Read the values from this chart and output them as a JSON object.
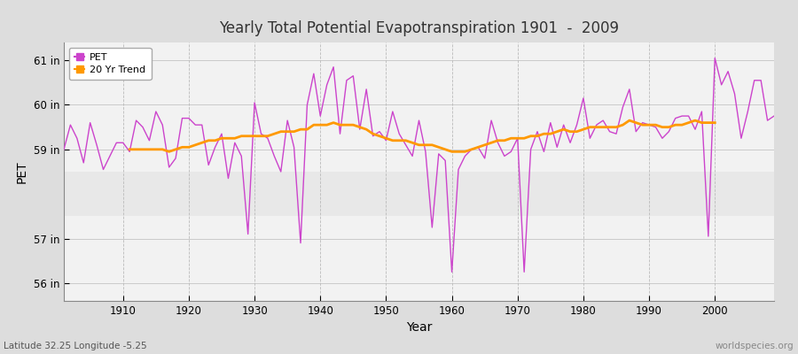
{
  "title": "Yearly Total Potential Evapotranspiration 1901  -  2009",
  "ylabel": "PET",
  "xlabel": "Year",
  "subtitle_left": "Latitude 32.25 Longitude -5.25",
  "subtitle_right": "worldspecies.org",
  "pet_color": "#cc44cc",
  "trend_color": "#ff9900",
  "bg_color": "#dddddd",
  "plot_bg": "#e8e8e8",
  "band_color": "#f2f2f2",
  "ylim": [
    55.6,
    61.4
  ],
  "yticks": [
    56,
    57,
    59,
    60,
    61
  ],
  "ytick_labels": [
    "56 in",
    "57 in",
    "59 in",
    "60 in",
    "61 in"
  ],
  "years": [
    1901,
    1902,
    1903,
    1904,
    1905,
    1906,
    1907,
    1908,
    1909,
    1910,
    1911,
    1912,
    1913,
    1914,
    1915,
    1916,
    1917,
    1918,
    1919,
    1920,
    1921,
    1922,
    1923,
    1924,
    1925,
    1926,
    1927,
    1928,
    1929,
    1930,
    1931,
    1932,
    1933,
    1934,
    1935,
    1936,
    1937,
    1938,
    1939,
    1940,
    1941,
    1942,
    1943,
    1944,
    1945,
    1946,
    1947,
    1948,
    1949,
    1950,
    1951,
    1952,
    1953,
    1954,
    1955,
    1956,
    1957,
    1958,
    1959,
    1960,
    1961,
    1962,
    1963,
    1964,
    1965,
    1966,
    1967,
    1968,
    1969,
    1970,
    1971,
    1972,
    1973,
    1974,
    1975,
    1976,
    1977,
    1978,
    1979,
    1980,
    1981,
    1982,
    1983,
    1984,
    1985,
    1986,
    1987,
    1988,
    1989,
    1990,
    1991,
    1992,
    1993,
    1994,
    1995,
    1996,
    1997,
    1998,
    1999,
    2000,
    2001,
    2002,
    2003,
    2004,
    2005,
    2006,
    2007,
    2008,
    2009
  ],
  "pet": [
    59.0,
    59.55,
    59.25,
    58.7,
    59.6,
    59.1,
    58.55,
    58.85,
    59.15,
    59.15,
    58.95,
    59.65,
    59.5,
    59.2,
    59.85,
    59.55,
    58.6,
    58.8,
    59.7,
    59.7,
    59.55,
    59.55,
    58.65,
    59.05,
    59.35,
    58.35,
    59.15,
    58.85,
    57.1,
    60.05,
    59.35,
    59.25,
    58.85,
    58.5,
    59.65,
    59.05,
    56.9,
    60.0,
    60.7,
    59.75,
    60.45,
    60.85,
    59.35,
    60.55,
    60.65,
    59.45,
    60.35,
    59.3,
    59.4,
    59.2,
    59.85,
    59.35,
    59.1,
    58.85,
    59.65,
    58.95,
    57.25,
    58.9,
    58.75,
    56.25,
    58.55,
    58.85,
    59.0,
    59.05,
    58.8,
    59.65,
    59.15,
    58.85,
    58.95,
    59.25,
    56.25,
    59.0,
    59.4,
    58.95,
    59.6,
    59.05,
    59.55,
    59.15,
    59.55,
    60.15,
    59.25,
    59.55,
    59.65,
    59.4,
    59.35,
    59.95,
    60.35,
    59.4,
    59.6,
    59.55,
    59.5,
    59.25,
    59.4,
    59.7,
    59.75,
    59.75,
    59.45,
    59.85,
    57.05,
    61.05,
    60.45,
    60.75,
    60.25,
    59.25,
    59.85,
    60.55,
    60.55,
    59.65,
    59.75
  ],
  "trend": [
    null,
    null,
    null,
    null,
    null,
    null,
    null,
    null,
    null,
    null,
    59.0,
    59.0,
    59.0,
    59.0,
    59.0,
    59.0,
    58.95,
    59.0,
    59.05,
    59.05,
    59.1,
    59.15,
    59.2,
    59.2,
    59.25,
    59.25,
    59.25,
    59.3,
    59.3,
    59.3,
    59.3,
    59.3,
    59.35,
    59.4,
    59.4,
    59.4,
    59.45,
    59.45,
    59.55,
    59.55,
    59.55,
    59.6,
    59.55,
    59.55,
    59.55,
    59.5,
    59.45,
    59.35,
    59.3,
    59.25,
    59.2,
    59.2,
    59.2,
    59.15,
    59.1,
    59.1,
    59.1,
    59.05,
    59.0,
    58.95,
    58.95,
    58.95,
    59.0,
    59.05,
    59.1,
    59.15,
    59.2,
    59.2,
    59.25,
    59.25,
    59.25,
    59.3,
    59.3,
    59.35,
    59.35,
    59.4,
    59.45,
    59.4,
    59.4,
    59.45,
    59.5,
    59.5,
    59.5,
    59.5,
    59.5,
    59.55,
    59.65,
    59.6,
    59.55,
    59.55,
    59.55,
    59.5,
    59.5,
    59.55,
    59.55,
    59.6,
    59.65,
    59.6,
    59.6,
    59.6,
    null,
    null,
    null,
    null,
    null,
    null,
    null,
    null,
    null
  ]
}
